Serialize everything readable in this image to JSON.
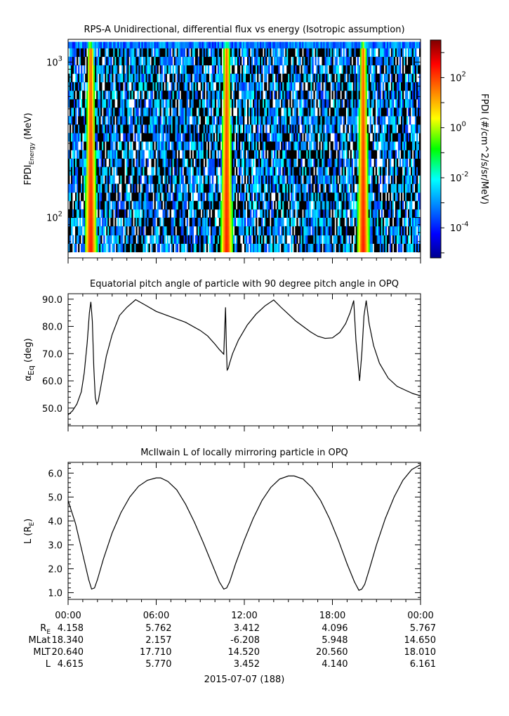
{
  "chart_data": [
    {
      "type": "heatmap",
      "title": "RPS-A Unidirectional, differential flux vs energy (Isotropic assumption)",
      "ylabel_main": "FPDI",
      "ylabel_sub": "Energy",
      "ylabel_unit": " (MeV)",
      "yscale": "log",
      "ylim": [
        55,
        1400
      ],
      "yticks": [
        {
          "base": "10",
          "exp": "2",
          "value": 100
        },
        {
          "base": "10",
          "exp": "3",
          "value": 1000
        }
      ],
      "xlim_hours": [
        0,
        24
      ],
      "energy_bins": [
        60,
        68,
        77,
        88,
        100,
        113,
        128,
        145,
        165,
        187,
        212,
        240,
        272,
        309,
        350,
        397,
        450,
        510,
        578,
        656,
        744,
        843,
        956,
        1084,
        1230,
        1350
      ],
      "belt_passes_hours": [
        1.5,
        10.75,
        20.05
      ],
      "colorbar": {
        "label": "FPDI (#/cm^2/s/sr/MeV)",
        "scale": "log",
        "range_exp": [
          -5.2,
          3.5
        ],
        "ticks": [
          {
            "base": "10",
            "exp": "2",
            "value_exp": 2
          },
          {
            "base": "10",
            "exp": "0",
            "value_exp": 0
          },
          {
            "base": "10",
            "exp": "-2",
            "value_exp": -2
          },
          {
            "base": "10",
            "exp": "-4",
            "value_exp": -4
          }
        ]
      }
    },
    {
      "type": "line",
      "title": "Equatorial pitch angle of particle with 90 degree pitch angle in OPQ",
      "ylabel_main": "α",
      "ylabel_sub": "Eq",
      "ylabel_unit": " (deg)",
      "ylim": [
        43.5,
        92
      ],
      "yticks": [
        50,
        60,
        70,
        80,
        90
      ],
      "xlim_hours": [
        0,
        24
      ],
      "series": [
        {
          "x": [
            0,
            0.3,
            0.6,
            0.9,
            1.1,
            1.3,
            1.45,
            1.55,
            1.65,
            1.75,
            1.85,
            1.95,
            2.05,
            2.3,
            2.6,
            3.0,
            3.5,
            4.0,
            4.6,
            5.2,
            6.0,
            7.0,
            8.0,
            9.0,
            9.5,
            10.0,
            10.3,
            10.6,
            10.72,
            10.78,
            10.83,
            10.9,
            11.0,
            11.2,
            11.6,
            12.2,
            12.8,
            13.4,
            14.0,
            14.5,
            15.0,
            15.5,
            16.0,
            16.5,
            17.0,
            17.5,
            18.0,
            18.5,
            18.9,
            19.2,
            19.45,
            19.6,
            19.85,
            20.0,
            20.15,
            20.3,
            20.5,
            20.8,
            21.2,
            21.8,
            22.4,
            23.0,
            23.5,
            24.0
          ],
          "y": [
            47.5,
            49.0,
            51.5,
            56.0,
            63.0,
            74.0,
            85.0,
            89.0,
            82.0,
            65.0,
            54.0,
            51.5,
            52.5,
            60.0,
            69.0,
            77.0,
            84.0,
            87.0,
            89.8,
            88.0,
            85.5,
            83.5,
            81.5,
            78.5,
            76.5,
            73.5,
            71.5,
            69.8,
            87.0,
            72.0,
            64.0,
            64.5,
            66.5,
            70.0,
            75.0,
            80.5,
            84.5,
            87.5,
            89.7,
            87.0,
            84.5,
            82.0,
            80.0,
            78.0,
            76.4,
            75.6,
            75.8,
            77.8,
            81.0,
            85.0,
            89.5,
            75.0,
            60.0,
            70.0,
            84.0,
            89.5,
            81.0,
            73.0,
            66.5,
            61.0,
            58.0,
            56.5,
            55.3,
            54.5
          ]
        }
      ]
    },
    {
      "type": "line",
      "title": "McIlwain L of locally mirroring particle in OPQ",
      "ylabel_main": "L (R",
      "ylabel_sub": "E",
      "ylabel_unit": ")",
      "ylim": [
        0.72,
        6.45
      ],
      "yticks": [
        1,
        2,
        3,
        4,
        5,
        6
      ],
      "xlim_hours": [
        0,
        24
      ],
      "xticks_hours": [
        0,
        6,
        12,
        18,
        24
      ],
      "xtick_labels": [
        "00:00",
        "06:00",
        "12:00",
        "18:00",
        "00:00"
      ],
      "series": [
        {
          "x": [
            0,
            0.5,
            1.0,
            1.4,
            1.6,
            1.8,
            2.0,
            2.4,
            3.0,
            3.6,
            4.2,
            4.8,
            5.4,
            6.0,
            6.3,
            6.8,
            7.4,
            8.0,
            8.6,
            9.2,
            9.8,
            10.3,
            10.6,
            10.8,
            11.0,
            11.4,
            12.0,
            12.6,
            13.2,
            13.8,
            14.4,
            15.0,
            15.4,
            16.0,
            16.6,
            17.2,
            17.8,
            18.4,
            19.0,
            19.5,
            19.8,
            20.0,
            20.2,
            20.5,
            21.0,
            21.6,
            22.2,
            22.8,
            23.4,
            24.0
          ],
          "y": [
            4.85,
            3.9,
            2.6,
            1.55,
            1.15,
            1.2,
            1.55,
            2.4,
            3.5,
            4.35,
            5.0,
            5.45,
            5.7,
            5.8,
            5.8,
            5.65,
            5.3,
            4.7,
            3.95,
            3.1,
            2.2,
            1.45,
            1.15,
            1.2,
            1.45,
            2.2,
            3.2,
            4.1,
            4.85,
            5.4,
            5.75,
            5.88,
            5.88,
            5.75,
            5.4,
            4.85,
            4.1,
            3.2,
            2.2,
            1.45,
            1.1,
            1.15,
            1.35,
            1.95,
            3.0,
            4.1,
            5.0,
            5.7,
            6.15,
            6.35
          ]
        }
      ]
    }
  ],
  "ephemeris": {
    "row_labels": [
      {
        "main": "R",
        "sub": "E"
      },
      {
        "main": "MLat",
        "sub": ""
      },
      {
        "main": "MLT",
        "sub": ""
      },
      {
        "main": "L",
        "sub": ""
      }
    ],
    "columns_hours": [
      0,
      6,
      12,
      18,
      24
    ],
    "values": [
      [
        "4.158",
        "5.762",
        "3.412",
        "4.096",
        "5.767"
      ],
      [
        "18.340",
        "2.157",
        "-6.208",
        "5.948",
        "14.650"
      ],
      [
        "20.640",
        "17.710",
        "14.520",
        "20.560",
        "18.010"
      ],
      [
        "4.615",
        "5.770",
        "3.452",
        "4.140",
        "6.161"
      ]
    ],
    "date_label": "2015-07-07 (188)"
  }
}
